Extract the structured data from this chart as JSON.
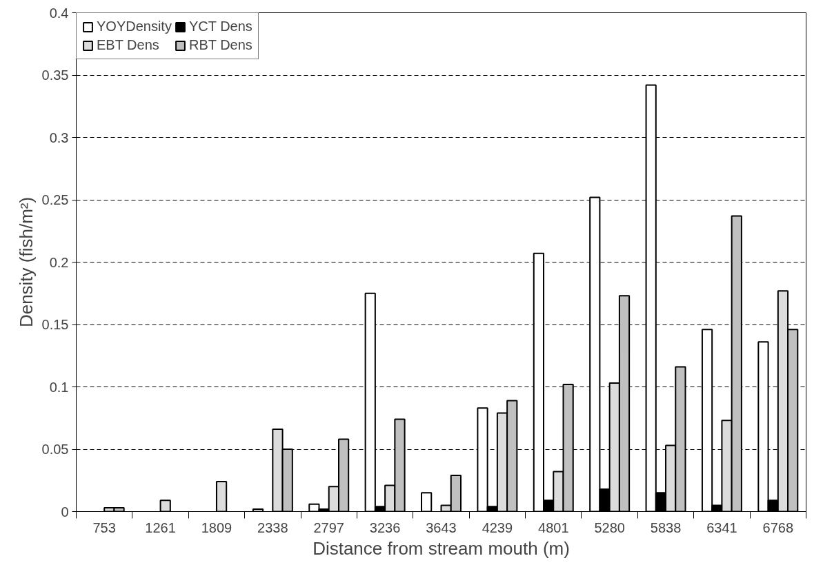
{
  "chart_data": {
    "type": "bar",
    "xlabel": "Distance from stream mouth (m)",
    "ylabel": "Density (fish/m²)",
    "categories": [
      "753",
      "1261",
      "1809",
      "2338",
      "2797",
      "3236",
      "3643",
      "4239",
      "4801",
      "5280",
      "5838",
      "6341",
      "6768"
    ],
    "series": [
      {
        "name": "YOYDensity",
        "color": "#ffffff",
        "values": [
          null,
          null,
          null,
          0.002,
          0.006,
          0.175,
          0.015,
          0.083,
          0.207,
          0.252,
          0.342,
          0.146,
          0.136
        ]
      },
      {
        "name": "YCT Dens",
        "color": "#000000",
        "values": [
          null,
          null,
          null,
          null,
          0.002,
          0.004,
          null,
          0.004,
          0.009,
          0.018,
          0.015,
          0.005,
          0.009
        ]
      },
      {
        "name": "EBT Dens",
        "color": "#dcdcdc",
        "values": [
          0.003,
          0.009,
          0.024,
          0.066,
          0.02,
          0.021,
          0.005,
          0.079,
          0.032,
          0.103,
          0.053,
          0.073,
          0.177
        ]
      },
      {
        "name": "RBT Dens",
        "color": "#c0c0c0",
        "values": [
          0.003,
          null,
          null,
          0.05,
          0.058,
          0.074,
          0.029,
          0.089,
          0.102,
          0.173,
          0.116,
          0.237,
          0.146
        ]
      }
    ],
    "ylim": [
      0,
      0.4
    ],
    "yticks": [
      0,
      0.05,
      0.1,
      0.15,
      0.2,
      0.25,
      0.3,
      0.35,
      0.4
    ],
    "grid": "y",
    "legend": "top left"
  }
}
